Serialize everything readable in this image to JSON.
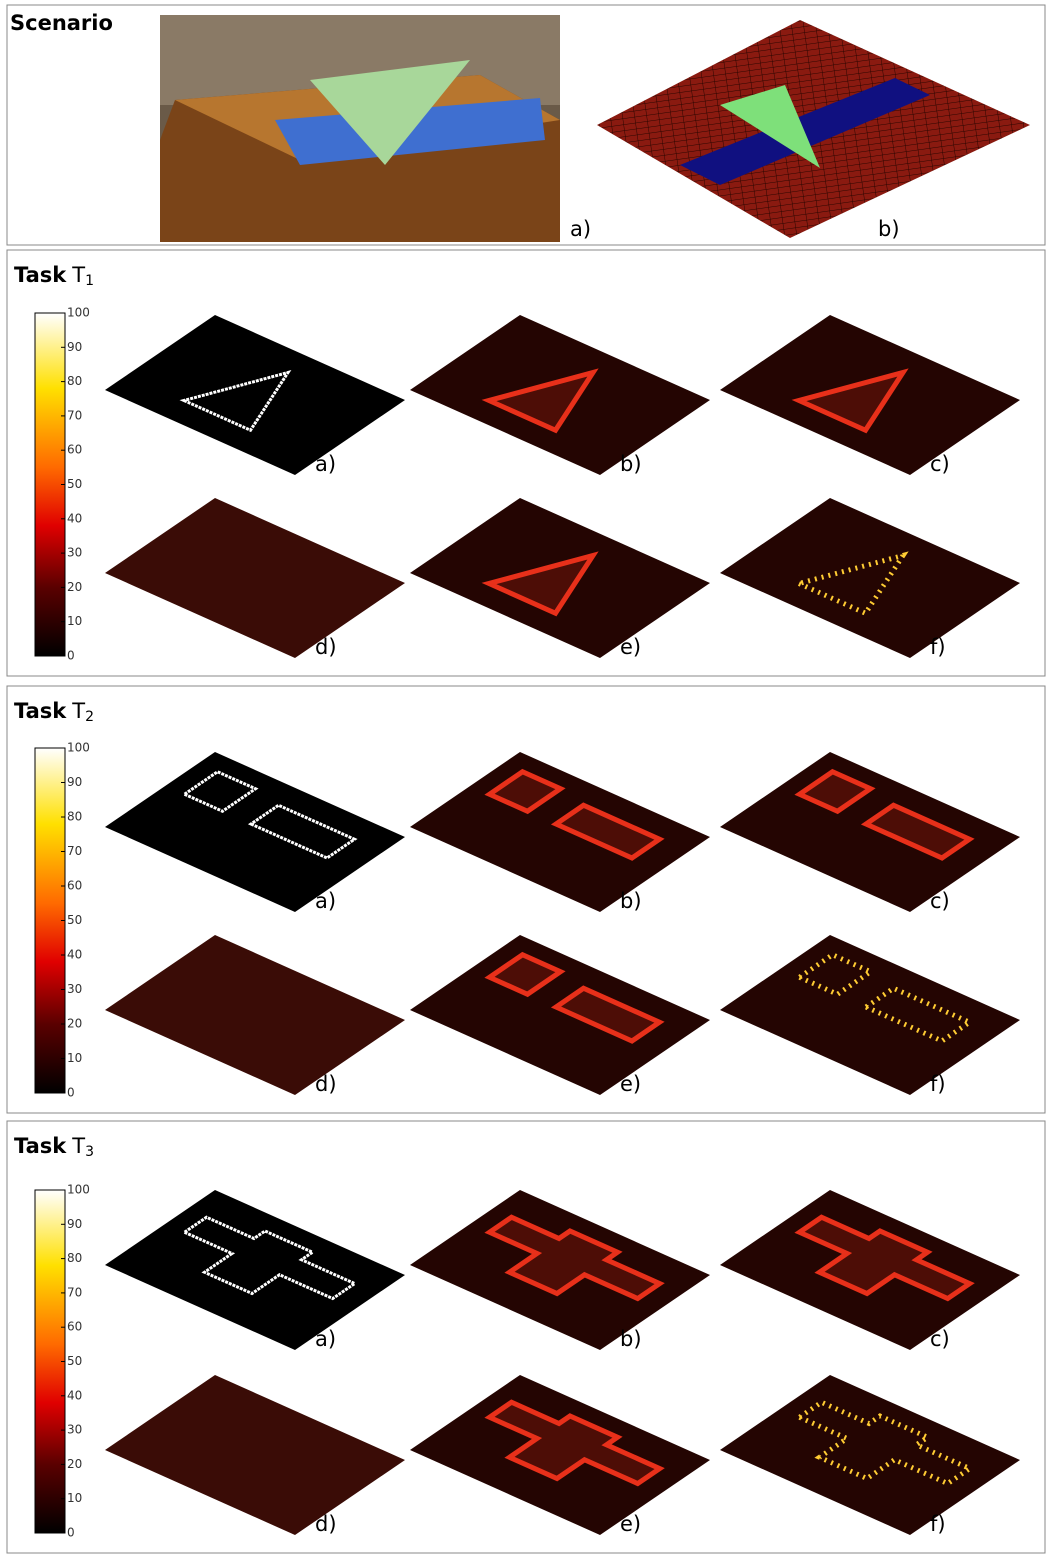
{
  "scenario": {
    "title": "Scenario",
    "labels": [
      "a)",
      "b)"
    ]
  },
  "tasks": [
    {
      "label": "Task",
      "symbol": "T",
      "index": "1",
      "colorbar_ticks": [
        0,
        10,
        20,
        30,
        40,
        50,
        60,
        70,
        80,
        90,
        100
      ],
      "panels": [
        "a)",
        "b)",
        "c)",
        "d)",
        "e)",
        "f)"
      ]
    },
    {
      "label": "Task",
      "symbol": "T",
      "index": "2",
      "colorbar_ticks": [
        0,
        10,
        20,
        30,
        40,
        50,
        60,
        70,
        80,
        90,
        100
      ],
      "panels": [
        "a)",
        "b)",
        "c)",
        "d)",
        "e)",
        "f)"
      ]
    },
    {
      "label": "Task",
      "symbol": "T",
      "index": "3",
      "colorbar_ticks": [
        0,
        10,
        20,
        30,
        40,
        50,
        60,
        70,
        80,
        90,
        100
      ],
      "panels": [
        "a)",
        "b)",
        "c)",
        "d)",
        "e)",
        "f)"
      ]
    }
  ]
}
